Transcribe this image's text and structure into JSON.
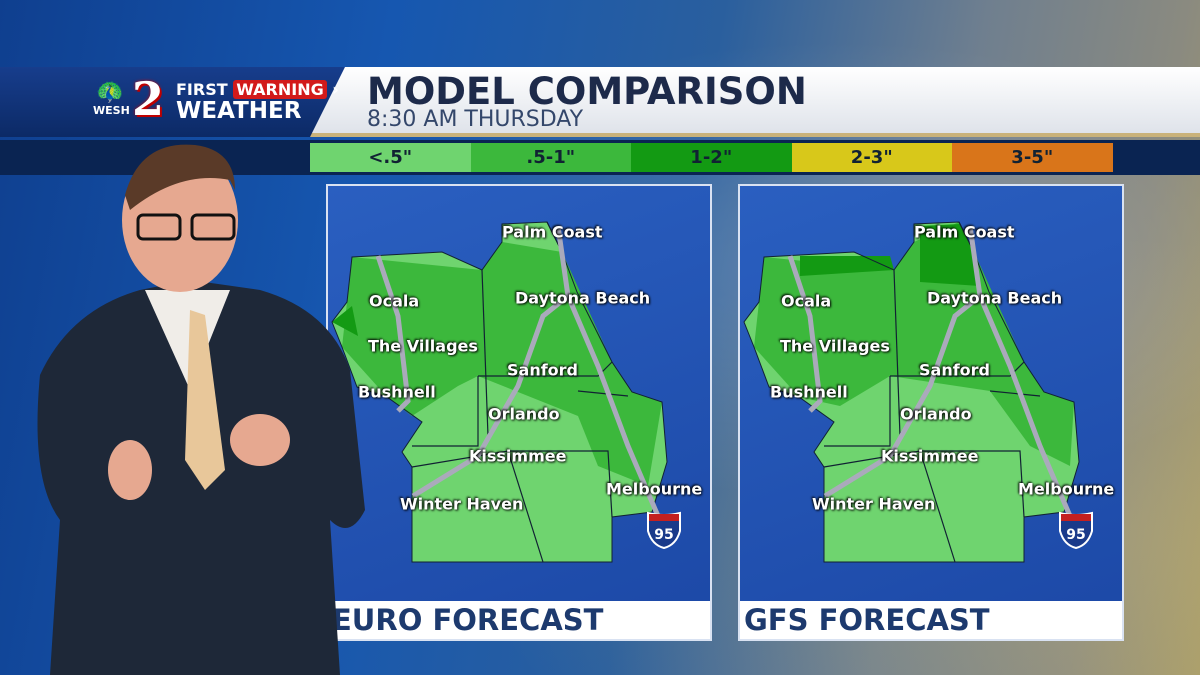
{
  "branding": {
    "station": "WESH",
    "channel": "2",
    "first": "FIRST",
    "warning": "WARNING",
    "weather": "WEATHER"
  },
  "header": {
    "title": "MODEL COMPARISON",
    "subtitle": "8:30 AM  THURSDAY"
  },
  "legend": [
    {
      "label": "<.5\"",
      "color": "#6fd46f"
    },
    {
      "label": ".5-1\"",
      "color": "#3cb83c"
    },
    {
      "label": "1-2\"",
      "color": "#139a13"
    },
    {
      "label": "2-3\"",
      "color": "#d8c81a"
    },
    {
      "label": "3-5\"",
      "color": "#d9751a"
    }
  ],
  "maps": [
    {
      "title": "EURO FORECAST",
      "display_title": "URO FORECAST"
    },
    {
      "title": "GFS FORECAST",
      "display_title": "GFS FORECAST"
    }
  ],
  "cities": [
    "Palm Coast",
    "Ocala",
    "Daytona Beach",
    "The Villages",
    "Sanford",
    "Bushnell",
    "Orlando",
    "Kissimmee",
    "Melbourne",
    "Winter Haven"
  ],
  "highway": "95"
}
